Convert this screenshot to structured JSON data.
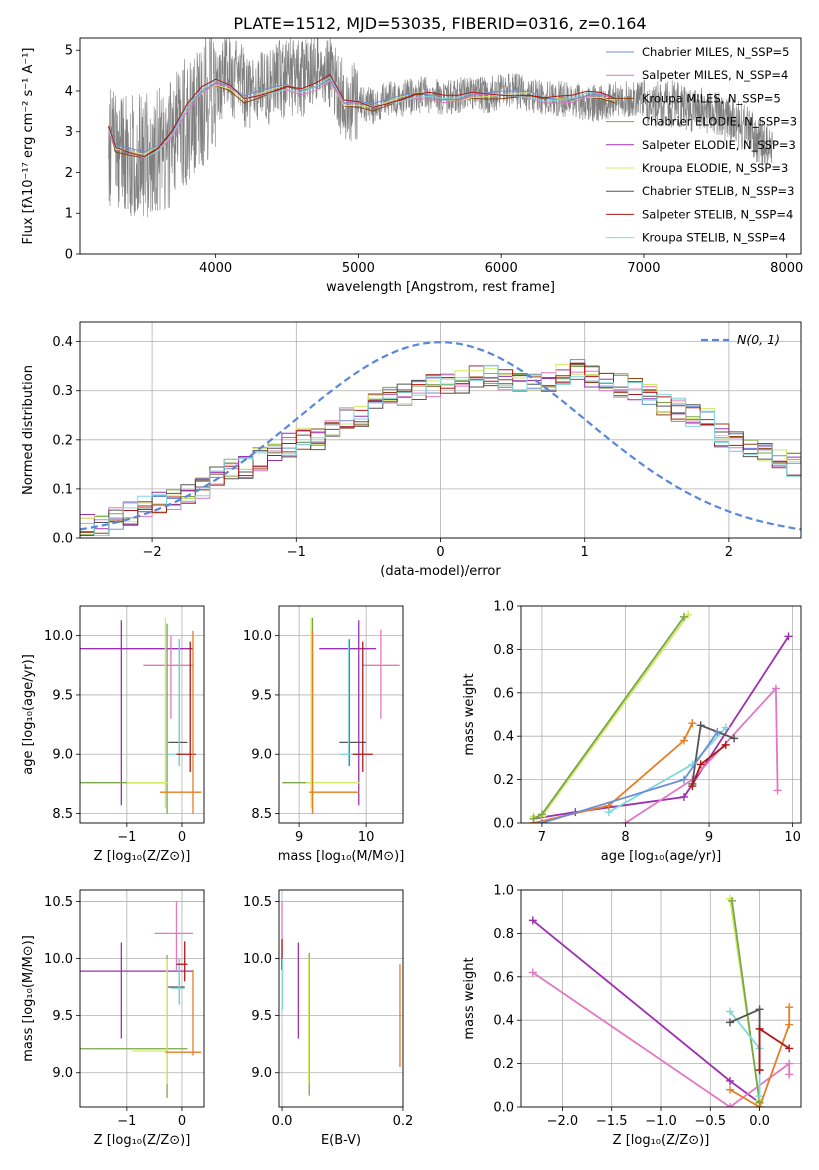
{
  "figure": {
    "title": "PLATE=1512, MJD=53035, FIBERID=0316, z=0.164"
  },
  "colors": {
    "series": [
      "#6b8fd6",
      "#e377c2",
      "#8b4513",
      "#7aa64a",
      "#9b30b0",
      "#d4e86a",
      "#555555",
      "#b01818",
      "#7fd8dc"
    ],
    "data": "#7f7f7f",
    "gauss": "#5b87d8",
    "orange": "#e67e22",
    "grid": "#b0b0b0"
  },
  "chart_data": [
    {
      "type": "line",
      "id": "spectrum",
      "xlabel": "wavelength [Angstrom, rest frame]",
      "ylabel": "Flux [fλ10⁻¹⁷ erg cm⁻² s⁻¹ A⁻¹]",
      "xlim": [
        3050,
        8100
      ],
      "ylim": [
        0,
        5.3
      ],
      "xticks": [
        4000,
        5000,
        6000,
        7000,
        8000
      ],
      "yticks": [
        0,
        1,
        2,
        3,
        4,
        5
      ],
      "grid": false,
      "legend_position": "right",
      "legend": [
        "Chabrier MILES, N_SSP=5",
        "Salpeter MILES, N_SSP=4",
        "Kroupa MILES, N_SSP=5",
        "Chabrier ELODIE, N_SSP=3",
        "Salpeter ELODIE, N_SSP=3",
        "Kroupa ELODIE, N_SSP=3",
        "Chabrier STELIB, N_SSP=3",
        "Salpeter STELIB, N_SSP=4",
        "Kroupa STELIB, N_SSP=4"
      ],
      "data_series": {
        "x": [
          3250,
          3400,
          3500,
          3600,
          3700,
          3800,
          3900,
          4000,
          4100,
          4200,
          4300,
          4400,
          4500,
          4600,
          4700,
          4800,
          4900,
          5000,
          5100,
          5200,
          5300,
          5400,
          5500,
          5600,
          5700,
          5800,
          5900,
          6000,
          6100,
          6200,
          6300,
          6400,
          6500,
          6600,
          6700,
          6800,
          6900,
          7000,
          7100,
          7200,
          7300,
          7400,
          7500,
          7600,
          7700,
          7800,
          7900
        ],
        "y": [
          2.7,
          2.5,
          2.4,
          2.5,
          2.8,
          3.3,
          3.6,
          4.2,
          4.4,
          4.1,
          3.9,
          4.2,
          4.3,
          4.3,
          4.5,
          4.5,
          3.7,
          3.8,
          3.6,
          3.8,
          3.8,
          3.9,
          3.9,
          3.8,
          3.9,
          3.9,
          3.9,
          4.0,
          4.0,
          3.9,
          3.8,
          3.8,
          3.8,
          3.7,
          3.7,
          3.8,
          3.8,
          3.8,
          3.7,
          3.7,
          3.6,
          3.5,
          3.4,
          3.3,
          3.1,
          2.8,
          2.5
        ]
      },
      "model_series": {
        "x": [
          3250,
          3300,
          3400,
          3500,
          3600,
          3700,
          3800,
          3900,
          4000,
          4100,
          4200,
          4300,
          4400,
          4500,
          4600,
          4700,
          4800,
          4900,
          5000,
          5100,
          5200,
          5300,
          5400,
          5500,
          5600,
          5700,
          5800,
          5900,
          6000,
          6100,
          6200,
          6300,
          6400,
          6500,
          6600,
          6700,
          6800
        ],
        "y": [
          3.1,
          2.6,
          2.5,
          2.4,
          2.6,
          3.0,
          3.6,
          4.0,
          4.2,
          4.1,
          3.8,
          3.9,
          4.0,
          4.1,
          4.0,
          4.1,
          4.3,
          3.7,
          3.7,
          3.6,
          3.7,
          3.8,
          3.9,
          3.9,
          3.8,
          3.8,
          3.9,
          3.9,
          3.9,
          3.9,
          3.9,
          3.8,
          3.8,
          3.8,
          3.9,
          3.9,
          3.8
        ]
      }
    },
    {
      "type": "step",
      "id": "residuals",
      "xlabel": "(data-model)/error",
      "ylabel": "Normed distribution",
      "xlim": [
        -2.5,
        2.5
      ],
      "ylim": [
        0,
        0.44
      ],
      "xticks": [
        -2,
        -1,
        0,
        1,
        2
      ],
      "yticks": [
        0.0,
        0.1,
        0.2,
        0.3,
        0.4
      ],
      "grid": true,
      "legend_position": "top-right",
      "legend": [
        "N(0, 1)"
      ],
      "bin_width": 0.1,
      "base_distribution": [
        0.025,
        0.022,
        0.04,
        0.05,
        0.065,
        0.075,
        0.08,
        0.09,
        0.105,
        0.13,
        0.14,
        0.145,
        0.16,
        0.17,
        0.19,
        0.2,
        0.205,
        0.22,
        0.24,
        0.25,
        0.27,
        0.29,
        0.29,
        0.3,
        0.31,
        0.31,
        0.32,
        0.33,
        0.33,
        0.32,
        0.31,
        0.31,
        0.32,
        0.33,
        0.34,
        0.33,
        0.32,
        0.31,
        0.3,
        0.29,
        0.27,
        0.26,
        0.25,
        0.24,
        0.21,
        0.2,
        0.19,
        0.17,
        0.16,
        0.15,
        0.14,
        0.12,
        0.12,
        0.1,
        0.1,
        0.09,
        0.09,
        0.08,
        0.08,
        0.07,
        0.06,
        0.06
      ]
    },
    {
      "type": "scatter",
      "id": "age-vs-Z",
      "xlabel": "Z [log₁₀(Z/Z⊙)]",
      "ylabel": "age  [log₁₀(age/yr)]",
      "xlim": [
        -1.85,
        0.4
      ],
      "ylim": [
        8.42,
        10.25
      ],
      "xticks": [
        -1,
        0
      ],
      "yticks": [
        8.5,
        9.0,
        9.5,
        10.0
      ],
      "grid": true,
      "errorbars": [
        {
          "c": 4,
          "x": -1.1,
          "y": 9.89,
          "xlo": -1.85,
          "xhi": 0.2,
          "ylo": 8.57,
          "yhi": 10.13
        },
        {
          "c": 1,
          "x": -0.2,
          "y": 9.75,
          "xlo": -0.7,
          "xhi": 0.2,
          "ylo": 9.3,
          "yhi": 10.0
        },
        {
          "c": 3,
          "x": -0.27,
          "y": 8.76,
          "xlo": -1.85,
          "xhi": -0.27,
          "ylo": 8.5,
          "yhi": 10.1
        },
        {
          "c": 5,
          "x": -0.3,
          "y": 8.76,
          "xlo": -1.0,
          "xhi": -0.25,
          "ylo": 8.55,
          "yhi": 10.15
        },
        {
          "c": 6,
          "x": -0.05,
          "y": 9.1,
          "xlo": -0.25,
          "xhi": 0.1,
          "ylo": 8.9,
          "yhi": 9.97
        },
        {
          "c": 8,
          "x": -0.05,
          "y": 9.0,
          "xlo": -0.25,
          "xhi": 0.05,
          "ylo": 8.9,
          "yhi": 9.97
        },
        {
          "c": 7,
          "x": 0.15,
          "y": 9.0,
          "xlo": -0.1,
          "xhi": 0.25,
          "ylo": 8.85,
          "yhi": 9.95
        },
        {
          "c": 2,
          "x": 0.2,
          "y": 8.68,
          "xlo": -0.4,
          "xhi": 0.35,
          "ylo": 8.5,
          "yhi": 10.04
        }
      ]
    },
    {
      "type": "scatter",
      "id": "age-vs-mass",
      "xlabel": "mass [log₁₀(M/M⊙)]",
      "ylabel": "",
      "xlim": [
        8.7,
        10.55
      ],
      "ylim": [
        8.42,
        10.25
      ],
      "xticks": [
        9,
        10
      ],
      "yticks": [
        8.5,
        9.0,
        9.5,
        10.0
      ],
      "grid": true,
      "errorbars": [
        {
          "c": 4,
          "x": 9.89,
          "y": 9.89,
          "xlo": 9.3,
          "xhi": 10.15,
          "ylo": 8.57,
          "yhi": 10.13
        },
        {
          "c": 1,
          "x": 10.22,
          "y": 9.75,
          "xlo": 9.95,
          "xhi": 10.5,
          "ylo": 9.3,
          "yhi": 10.05
        },
        {
          "c": 3,
          "x": 9.2,
          "y": 8.76,
          "xlo": 8.75,
          "xhi": 9.2,
          "ylo": 8.5,
          "yhi": 10.15
        },
        {
          "c": 5,
          "x": 9.18,
          "y": 8.76,
          "xlo": 9.1,
          "xhi": 9.9,
          "ylo": 8.55,
          "yhi": 10.15
        },
        {
          "c": 6,
          "x": 9.75,
          "y": 9.1,
          "xlo": 9.6,
          "xhi": 10.0,
          "ylo": 8.9,
          "yhi": 9.97
        },
        {
          "c": 8,
          "x": 9.74,
          "y": 9.0,
          "xlo": 9.6,
          "xhi": 9.95,
          "ylo": 8.9,
          "yhi": 9.97
        },
        {
          "c": 7,
          "x": 9.95,
          "y": 9.0,
          "xlo": 9.8,
          "xhi": 10.1,
          "ylo": 8.85,
          "yhi": 9.95
        },
        {
          "c": 2,
          "x": 9.2,
          "y": 8.68,
          "xlo": 9.15,
          "xhi": 9.9,
          "ylo": 8.5,
          "yhi": 10.04
        }
      ]
    },
    {
      "type": "line",
      "id": "weight-vs-age",
      "xlabel": "age  [log₁₀(age/yr)]",
      "ylabel": "mass weight",
      "xlim": [
        6.75,
        10.1
      ],
      "ylim": [
        0,
        1.0
      ],
      "xticks": [
        7,
        8,
        9,
        10
      ],
      "yticks": [
        0.0,
        0.2,
        0.4,
        0.6,
        0.8,
        1.0
      ],
      "grid": true,
      "series": [
        {
          "c": 4,
          "points": [
            [
              6.9,
              0.02
            ],
            [
              7.4,
              0.05
            ],
            [
              8.7,
              0.12
            ],
            [
              9.95,
              0.86
            ]
          ]
        },
        {
          "c": 1,
          "points": [
            [
              8.0,
              0.0
            ],
            [
              8.8,
              0.2
            ],
            [
              9.8,
              0.62
            ],
            [
              9.82,
              0.15
            ]
          ]
        },
        {
          "c": 5,
          "points": [
            [
              6.9,
              0.03
            ],
            [
              7.0,
              0.03
            ],
            [
              8.75,
              0.96
            ]
          ]
        },
        {
          "c": 3,
          "points": [
            [
              6.9,
              0.02
            ],
            [
              7.0,
              0.04
            ],
            [
              8.7,
              0.95
            ]
          ]
        },
        {
          "c": 9,
          "points": [
            [
              7.8,
              0.05
            ],
            [
              8.8,
              0.27
            ],
            [
              9.2,
              0.44
            ]
          ]
        },
        {
          "c": 2,
          "points": [
            [
              6.9,
              0.0
            ],
            [
              7.8,
              0.08
            ],
            [
              8.7,
              0.38
            ],
            [
              8.8,
              0.46
            ]
          ]
        },
        {
          "c": 6,
          "points": [
            [
              8.8,
              0.18
            ],
            [
              8.9,
              0.45
            ],
            [
              9.3,
              0.39
            ]
          ]
        },
        {
          "c": 7,
          "points": [
            [
              8.8,
              0.17
            ],
            [
              8.9,
              0.27
            ],
            [
              9.2,
              0.36
            ]
          ]
        },
        {
          "c": 0,
          "points": [
            [
              7.0,
              0.0
            ],
            [
              8.7,
              0.2
            ],
            [
              9.1,
              0.42
            ]
          ]
        }
      ]
    },
    {
      "type": "scatter",
      "id": "mass-vs-Z",
      "xlabel": "Z [log₁₀(Z/Z⊙)]",
      "ylabel": "mass [log₁₀(M/M⊙)]",
      "xlim": [
        -1.85,
        0.4
      ],
      "ylim": [
        8.7,
        10.6
      ],
      "xticks": [
        -1,
        0
      ],
      "yticks": [
        9.0,
        9.5,
        10.0,
        10.5
      ],
      "grid": true,
      "errorbars": [
        {
          "c": 4,
          "x": -1.1,
          "y": 9.89,
          "xlo": -1.85,
          "xhi": 0.2,
          "ylo": 9.3,
          "yhi": 10.14
        },
        {
          "c": 1,
          "x": -0.1,
          "y": 10.22,
          "xlo": -0.5,
          "xhi": 0.2,
          "ylo": 9.9,
          "yhi": 10.5
        },
        {
          "c": 3,
          "x": -0.27,
          "y": 9.21,
          "xlo": -1.85,
          "xhi": 0.1,
          "ylo": 8.78,
          "yhi": 10.03
        },
        {
          "c": 5,
          "x": -0.27,
          "y": 9.19,
          "xlo": -0.9,
          "xhi": -0.25,
          "ylo": 8.9,
          "yhi": 10.0
        },
        {
          "c": 6,
          "x": -0.05,
          "y": 9.75,
          "xlo": -0.25,
          "xhi": 0.05,
          "ylo": 9.6,
          "yhi": 10.0
        },
        {
          "c": 8,
          "x": -0.05,
          "y": 9.74,
          "xlo": -0.2,
          "xhi": 0.05,
          "ylo": 9.6,
          "yhi": 10.0
        },
        {
          "c": 7,
          "x": 0.05,
          "y": 9.95,
          "xlo": -0.1,
          "xhi": 0.1,
          "ylo": 9.8,
          "yhi": 10.15
        },
        {
          "c": 2,
          "x": 0.2,
          "y": 9.18,
          "xlo": -0.3,
          "xhi": 0.35,
          "ylo": 9.15,
          "yhi": 9.9
        }
      ]
    },
    {
      "type": "scatter",
      "id": "mass-vs-ebv",
      "xlabel": "E(B-V)",
      "ylabel": "",
      "xlim": [
        -0.005,
        0.2
      ],
      "ylim": [
        8.7,
        10.6
      ],
      "xticks": [
        0.0,
        0.2
      ],
      "yticks": [
        9.0,
        9.5,
        10.0,
        10.5
      ],
      "grid": true,
      "errorbars": [
        {
          "c": 1,
          "x": 0.0,
          "y": 10.2,
          "xlo": 0.0,
          "xhi": 0.0,
          "ylo": 9.9,
          "yhi": 10.5
        },
        {
          "c": 7,
          "x": 0.0,
          "y": 10.0,
          "xlo": 0.0,
          "xhi": 0.0,
          "ylo": 9.9,
          "yhi": 10.17
        },
        {
          "c": 8,
          "x": 0.001,
          "y": 9.7,
          "xlo": 0.001,
          "xhi": 0.001,
          "ylo": 9.55,
          "yhi": 10.0
        },
        {
          "c": 4,
          "x": 0.027,
          "y": 9.89,
          "xlo": 0.027,
          "xhi": 0.027,
          "ylo": 9.3,
          "yhi": 10.14
        },
        {
          "c": 3,
          "x": 0.045,
          "y": 9.0,
          "xlo": 0.045,
          "xhi": 0.045,
          "ylo": 8.8,
          "yhi": 10.05
        },
        {
          "c": 5,
          "x": 0.044,
          "y": 9.2,
          "xlo": 0.044,
          "xhi": 0.044,
          "ylo": 8.9,
          "yhi": 10.0
        },
        {
          "c": 2,
          "x": 0.195,
          "y": 9.5,
          "xlo": 0.195,
          "xhi": 0.195,
          "ylo": 9.05,
          "yhi": 9.95
        }
      ]
    },
    {
      "type": "line",
      "id": "weight-vs-Z",
      "xlabel": "Z [log₁₀(Z/Z⊙)]",
      "ylabel": "mass weight",
      "xlim": [
        -2.42,
        0.42
      ],
      "ylim": [
        0,
        1.0
      ],
      "xticks": [
        -2.0,
        -1.5,
        -1.0,
        -0.5,
        0.0
      ],
      "yticks": [
        0.0,
        0.2,
        0.4,
        0.6,
        0.8,
        1.0
      ],
      "grid": true,
      "series": [
        {
          "c": 4,
          "points": [
            [
              -2.3,
              0.86
            ],
            [
              -0.3,
              0.12
            ],
            [
              0.0,
              0.02
            ]
          ]
        },
        {
          "c": 1,
          "points": [
            [
              -2.3,
              0.62
            ],
            [
              -0.3,
              0.0
            ],
            [
              0.3,
              0.2
            ],
            [
              0.3,
              0.15
            ]
          ]
        },
        {
          "c": 5,
          "points": [
            [
              -0.3,
              0.96
            ],
            [
              0.0,
              0.03
            ]
          ]
        },
        {
          "c": 3,
          "points": [
            [
              -0.28,
              0.95
            ],
            [
              0.0,
              0.02
            ]
          ]
        },
        {
          "c": 9,
          "points": [
            [
              -0.3,
              0.44
            ],
            [
              0.0,
              0.27
            ],
            [
              0.0,
              0.05
            ]
          ]
        },
        {
          "c": 2,
          "points": [
            [
              -0.3,
              0.08
            ],
            [
              0.0,
              0.0
            ],
            [
              0.3,
              0.38
            ],
            [
              0.3,
              0.46
            ]
          ]
        },
        {
          "c": 6,
          "points": [
            [
              -0.3,
              0.39
            ],
            [
              0.0,
              0.45
            ],
            [
              0.0,
              0.17
            ]
          ]
        },
        {
          "c": 7,
          "points": [
            [
              0.0,
              0.17
            ],
            [
              0.0,
              0.36
            ],
            [
              0.3,
              0.27
            ]
          ]
        }
      ]
    }
  ]
}
